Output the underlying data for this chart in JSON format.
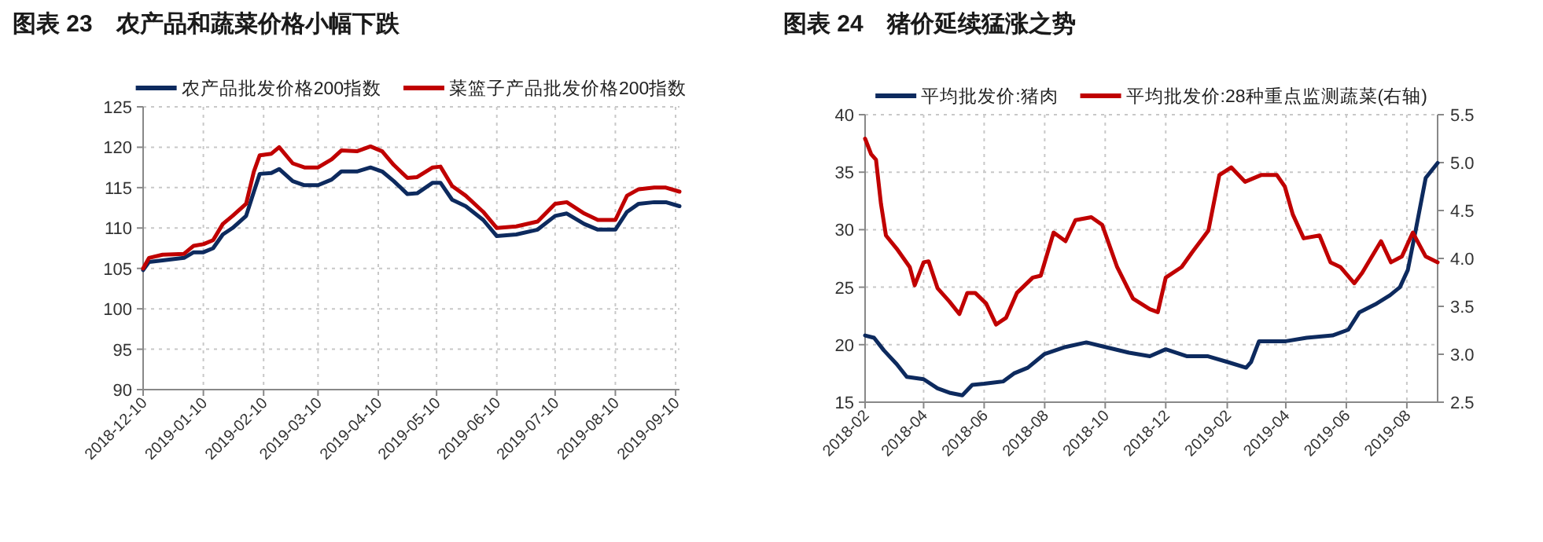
{
  "chart_data": [
    {
      "type": "line",
      "title": "图表 23　农产品和蔬菜价格小幅下跌",
      "xlim": [
        "2018-12-10",
        "2019-09-12"
      ],
      "xticks": [
        "2018-12-10",
        "2019-01-10",
        "2019-02-10",
        "2019-03-10",
        "2019-04-10",
        "2019-05-10",
        "2019-06-10",
        "2019-07-10",
        "2019-08-10",
        "2019-09-10"
      ],
      "ylim": [
        90,
        125
      ],
      "yticks": [
        90,
        95,
        100,
        105,
        110,
        115,
        120,
        125
      ],
      "grid": true,
      "legend": "top",
      "line_style": "solid",
      "x": [
        "2018-12-10",
        "2018-12-13",
        "2018-12-20",
        "2018-12-31",
        "2019-01-05",
        "2019-01-10",
        "2019-01-15",
        "2019-01-20",
        "2019-01-25",
        "2019-02-01",
        "2019-02-05",
        "2019-02-08",
        "2019-02-14",
        "2019-02-18",
        "2019-02-25",
        "2019-03-03",
        "2019-03-10",
        "2019-03-17",
        "2019-03-22",
        "2019-03-30",
        "2019-04-06",
        "2019-04-12",
        "2019-04-18",
        "2019-04-25",
        "2019-04-30",
        "2019-05-08",
        "2019-05-12",
        "2019-05-18",
        "2019-05-25",
        "2019-06-03",
        "2019-06-10",
        "2019-06-20",
        "2019-07-01",
        "2019-07-10",
        "2019-07-16",
        "2019-07-25",
        "2019-08-01",
        "2019-08-10",
        "2019-08-16",
        "2019-08-22",
        "2019-08-30",
        "2019-09-05",
        "2019-09-12"
      ],
      "series": [
        {
          "name": "农产品批发价格200指数",
          "color": "#0d2a5e",
          "values": [
            104.8,
            105.8,
            106.0,
            106.3,
            107.0,
            107.0,
            107.5,
            109.2,
            110.0,
            111.5,
            114.5,
            116.7,
            116.8,
            117.3,
            115.8,
            115.3,
            115.3,
            116.0,
            117.0,
            117.0,
            117.5,
            117.0,
            115.8,
            114.2,
            114.3,
            115.6,
            115.6,
            113.5,
            112.7,
            111.0,
            109.0,
            109.2,
            109.8,
            111.5,
            111.8,
            110.5,
            109.8,
            109.8,
            112.0,
            113.0,
            113.2,
            113.2,
            112.7
          ]
        },
        {
          "name": "菜篮子产品批发价格200指数",
          "color": "#c00000",
          "values": [
            105.0,
            106.3,
            106.7,
            106.8,
            107.8,
            108.0,
            108.5,
            110.5,
            111.5,
            113.0,
            117.0,
            119.0,
            119.2,
            120.0,
            118.0,
            117.5,
            117.5,
            118.5,
            119.6,
            119.5,
            120.1,
            119.5,
            117.8,
            116.2,
            116.3,
            117.5,
            117.6,
            115.2,
            114.0,
            112.0,
            110.0,
            110.2,
            110.8,
            113.0,
            113.2,
            111.8,
            111.0,
            111.0,
            114.0,
            114.8,
            115.0,
            115.0,
            114.5
          ]
        }
      ]
    },
    {
      "type": "line",
      "title": "图表 24　猪价延续猛涨之势",
      "xlim": [
        "2018-02-01",
        "2019-09-01"
      ],
      "xticks": [
        "2018-02",
        "2018-04",
        "2018-06",
        "2018-08",
        "2018-10",
        "2018-12",
        "2019-02",
        "2019-04",
        "2019-06",
        "2019-08"
      ],
      "ylim": [
        15,
        40
      ],
      "yticks": [
        15,
        20,
        25,
        30,
        35,
        40
      ],
      "y2lim": [
        2.5,
        5.5
      ],
      "y2ticks": [
        2.5,
        {
          "value": 3,
          "label": "3.0"
        },
        3.5,
        {
          "value": 4,
          "label": "4.0"
        },
        4.5,
        {
          "value": 5,
          "label": "5.0"
        },
        5.5
      ],
      "grid": true,
      "legend": "top",
      "line_style": "solid",
      "series": [
        {
          "name": "平均批发价:猪肉",
          "color": "#0d2a5e",
          "x": [
            "2018-02-01",
            "2018-02-10",
            "2018-02-20",
            "2018-03-05",
            "2018-03-15",
            "2018-04-01",
            "2018-04-15",
            "2018-04-28",
            "2018-05-10",
            "2018-05-20",
            "2018-06-01",
            "2018-06-20",
            "2018-07-01",
            "2018-07-15",
            "2018-08-01",
            "2018-08-22",
            "2018-09-12",
            "2018-10-01",
            "2018-10-25",
            "2018-11-15",
            "2018-12-01",
            "2018-12-22",
            "2019-01-12",
            "2019-02-01",
            "2019-02-20",
            "2019-02-25",
            "2019-03-05",
            "2019-04-01",
            "2019-04-22",
            "2019-05-18",
            "2019-06-03",
            "2019-06-14",
            "2019-06-30",
            "2019-07-15",
            "2019-07-25",
            "2019-08-02",
            "2019-08-10",
            "2019-08-20",
            "2019-09-01"
          ],
          "values": [
            20.8,
            20.6,
            19.5,
            18.3,
            17.2,
            17.0,
            16.2,
            15.8,
            15.6,
            16.5,
            16.6,
            16.8,
            17.5,
            18.0,
            19.2,
            19.8,
            20.2,
            19.8,
            19.3,
            19.0,
            19.6,
            19.0,
            19.0,
            18.5,
            18.0,
            18.5,
            20.3,
            20.3,
            20.6,
            20.8,
            21.3,
            22.8,
            23.5,
            24.3,
            25.0,
            26.5,
            30.0,
            34.5,
            35.8
          ]
        },
        {
          "name": "平均批发价:28种重点监测蔬菜(右轴)",
          "color": "#c00000",
          "axis": "y2",
          "x": [
            "2018-02-01",
            "2018-02-07",
            "2018-02-12",
            "2018-02-17",
            "2018-02-22",
            "2018-03-05",
            "2018-03-18",
            "2018-03-23",
            "2018-04-01",
            "2018-04-06",
            "2018-04-15",
            "2018-04-27",
            "2018-05-07",
            "2018-05-15",
            "2018-05-23",
            "2018-06-03",
            "2018-06-13",
            "2018-06-23",
            "2018-07-04",
            "2018-07-20",
            "2018-07-28",
            "2018-08-10",
            "2018-08-22",
            "2018-09-01",
            "2018-09-17",
            "2018-09-28",
            "2018-10-13",
            "2018-10-29",
            "2018-11-15",
            "2018-11-23",
            "2018-12-01",
            "2018-12-17",
            "2018-12-28",
            "2019-01-13",
            "2019-01-24",
            "2019-02-05",
            "2019-02-19",
            "2019-03-07",
            "2019-03-23",
            "2019-03-31",
            "2019-04-08",
            "2019-04-19",
            "2019-05-05",
            "2019-05-16",
            "2019-05-26",
            "2019-06-09",
            "2019-06-17",
            "2019-07-06",
            "2019-07-16",
            "2019-07-27",
            "2019-08-07",
            "2019-08-20",
            "2019-09-01"
          ],
          "values": [
            5.25,
            5.09,
            5.03,
            4.57,
            4.24,
            4.1,
            3.91,
            3.72,
            3.96,
            3.97,
            3.69,
            3.55,
            3.42,
            3.64,
            3.64,
            3.53,
            3.31,
            3.38,
            3.64,
            3.8,
            3.82,
            4.27,
            4.18,
            4.4,
            4.43,
            4.35,
            3.91,
            3.58,
            3.47,
            3.44,
            3.8,
            3.91,
            4.07,
            4.29,
            4.87,
            4.95,
            4.8,
            4.87,
            4.87,
            4.75,
            4.46,
            4.21,
            4.24,
            3.96,
            3.91,
            3.74,
            3.85,
            4.18,
            3.96,
            4.02,
            4.27,
            4.02,
            3.96
          ]
        }
      ]
    }
  ]
}
